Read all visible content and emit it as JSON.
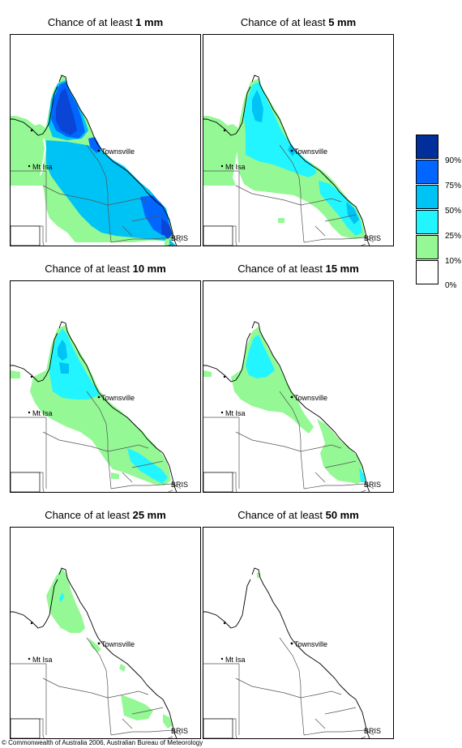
{
  "panels": [
    {
      "prefix": "Chance of at least ",
      "amount": "1 mm"
    },
    {
      "prefix": "Chance of at least ",
      "amount": "5 mm"
    },
    {
      "prefix": "Chance of at least ",
      "amount": "10 mm"
    },
    {
      "prefix": "Chance of at least ",
      "amount": "15 mm"
    },
    {
      "prefix": "Chance of at least ",
      "amount": "25 mm"
    },
    {
      "prefix": "Chance of at least ",
      "amount": "50 mm"
    }
  ],
  "places": {
    "townsville": "Townsville",
    "mt_isa": "Mt Isa",
    "brisbane": "BRIS"
  },
  "legend": {
    "labels": [
      "90%",
      "75%",
      "50%",
      "25%",
      "10%",
      "0%"
    ],
    "colors": [
      "#002f9b",
      "#0066ff",
      "#00c3f5",
      "#22f5ff",
      "#94f894",
      "#ffffff"
    ]
  },
  "colors": {
    "green": "#94f894",
    "cyan": "#22f5ff",
    "lightblue": "#00c3f5",
    "blue": "#0066ff",
    "darkblue": "#0b45d6"
  },
  "copyright": "© Commonwealth of Australia 2006, Australian Bureau of Meteorology"
}
